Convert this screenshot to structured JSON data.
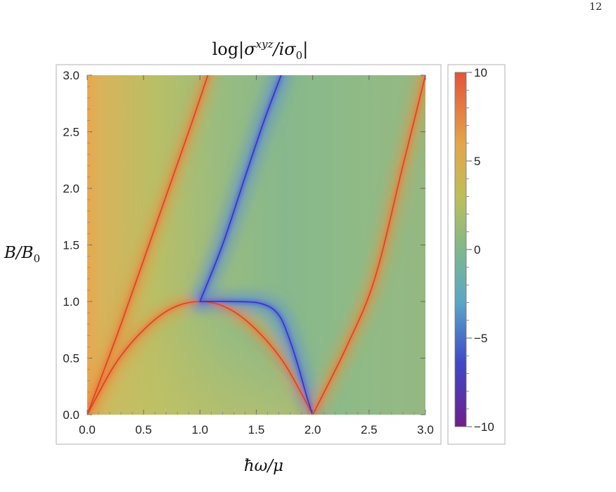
{
  "page_number": "12",
  "chart_data": {
    "type": "heatmap",
    "title": "log|σ^{xyz}/iσ_0|",
    "title_parts": {
      "pre": "log|",
      "sigma": "σ",
      "sup": "xyz",
      "mid": "/iσ",
      "sub": "0",
      "post": "|"
    },
    "xlabel": "ħω/μ",
    "ylabel_parts": {
      "pre": "B/B",
      "sub": "0"
    },
    "ylabel": "B/B_0",
    "xlim": [
      0,
      3
    ],
    "ylim": [
      0,
      3
    ],
    "x_ticks": [
      "0.0",
      "0.5",
      "1.0",
      "1.5",
      "2.0",
      "2.5",
      "3.0"
    ],
    "y_ticks": [
      "0.0",
      "0.5",
      "1.0",
      "1.5",
      "2.0",
      "2.5",
      "3.0"
    ],
    "colorbar": {
      "range": [
        -10,
        10
      ],
      "ticks": [
        "10",
        "5",
        "0",
        "−5",
        "−10"
      ],
      "tick_values": [
        10,
        5,
        0,
        -5,
        -10
      ],
      "colors": [
        "#6e1f8a",
        "#3f49c8",
        "#5aa6c8",
        "#7fb98a",
        "#bdbf5a",
        "#e4a54a",
        "#e4533a"
      ]
    },
    "curves": [
      {
        "name": "",
        "sign": "high",
        "points": [
          [
            0.0,
            0.0
          ],
          [
            0.3,
            0.8
          ],
          [
            0.6,
            1.65
          ],
          [
            0.9,
            2.5
          ],
          [
            1.07,
            3.0
          ]
        ]
      },
      {
        "name": "",
        "sign": "high",
        "points": [
          [
            0.0,
            0.0
          ],
          [
            0.25,
            0.45
          ],
          [
            0.5,
            0.75
          ],
          [
            0.75,
            0.94
          ],
          [
            1.0,
            1.0
          ],
          [
            1.25,
            0.94
          ],
          [
            1.5,
            0.75
          ],
          [
            1.75,
            0.45
          ],
          [
            2.0,
            0.0
          ]
        ]
      },
      {
        "name": "",
        "sign": "low",
        "points": [
          [
            1.0,
            1.0
          ],
          [
            1.2,
            1.5
          ],
          [
            1.4,
            2.1
          ],
          [
            1.57,
            2.6
          ],
          [
            1.72,
            3.0
          ]
        ]
      },
      {
        "name": "",
        "sign": "low",
        "points": [
          [
            1.0,
            1.0
          ],
          [
            1.3,
            1.0
          ],
          [
            1.55,
            0.98
          ],
          [
            1.7,
            0.88
          ],
          [
            1.8,
            0.65
          ],
          [
            1.88,
            0.4
          ],
          [
            1.95,
            0.15
          ],
          [
            2.0,
            0.0
          ]
        ]
      },
      {
        "name": "",
        "sign": "high",
        "points": [
          [
            2.0,
            0.0
          ],
          [
            2.3,
            0.6
          ],
          [
            2.55,
            1.2
          ],
          [
            2.8,
            2.2
          ],
          [
            3.0,
            3.0
          ]
        ]
      }
    ]
  }
}
